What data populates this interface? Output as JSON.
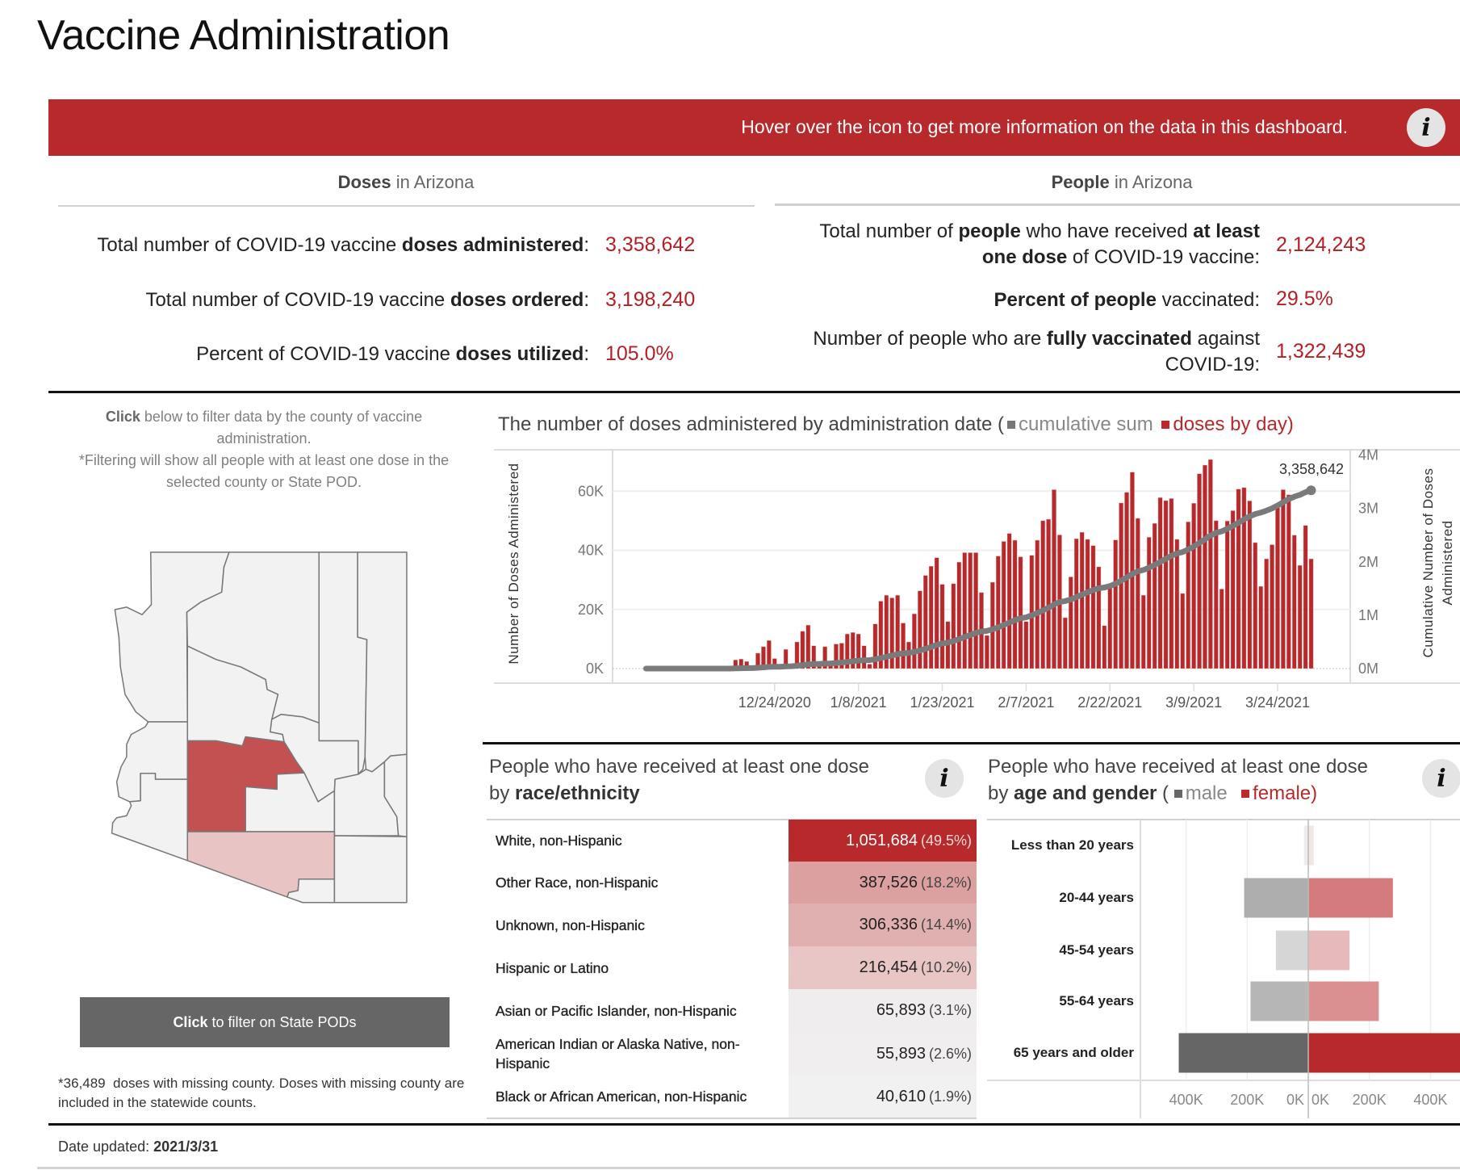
{
  "page_title": "Vaccine Administration",
  "banner": {
    "text": "Hover over the icon to get more information on the data in this dashboard.",
    "icon": "info-icon",
    "color": "#b8292b"
  },
  "doses": {
    "header_bold": "Doses",
    "header_rest": " in Arizona",
    "kpis": [
      {
        "parts": [
          "Total number of COVID-19 vaccine ",
          "doses administered",
          ":"
        ],
        "value": "3,358,642"
      },
      {
        "parts": [
          "Total number of COVID-19 vaccine ",
          "doses ordered",
          ":"
        ],
        "value": "3,198,240"
      },
      {
        "parts": [
          "Percent of COVID-19 vaccine ",
          "doses utilized",
          ":"
        ],
        "value": "105.0%"
      }
    ]
  },
  "people": {
    "header_bold": "People",
    "header_rest": " in Arizona",
    "kpis": [
      {
        "parts": [
          "Total number of ",
          "people",
          " who have received ",
          "at least one dose",
          " of COVID-19 vaccine:"
        ],
        "value": "2,124,243"
      },
      {
        "parts": [
          "Percent of people",
          " vaccinated:"
        ],
        "value": "29.5%"
      },
      {
        "parts": [
          "Number of people who are ",
          "fully vaccinated",
          " against COVID-19:"
        ],
        "value": "1,322,439"
      }
    ]
  },
  "map_panel": {
    "instructions": [
      "Click",
      " below to filter data by the county of vaccine administration."
    ],
    "note": "*Filtering will show all people with at least one dose in the selected county or State POD.",
    "fills": {
      "selected": "#c45152",
      "secondary": "#e8c4c4",
      "default": "#f2f2f2"
    },
    "button": [
      "Click",
      " to filter on State PODs"
    ],
    "footnote": "*36,489  doses with missing county. Doses with missing county are included in the statewide counts."
  },
  "date_updated": {
    "label": "Date updated: ",
    "value": "2021/3/31"
  },
  "race": {
    "title_line1": "People who have received at least one dose",
    "title_by": "by ",
    "title_bold": "race/ethnicity",
    "icon": "info-icon",
    "rows": [
      {
        "label": "White, non-Hispanic",
        "value": "1,051,684",
        "pct": "(49.5%)",
        "color": "#b8292b"
      },
      {
        "label": "Other Race, non-Hispanic",
        "value": "387,526",
        "pct": "(18.2%)",
        "color": "#dca0a1"
      },
      {
        "label": "Unknown, non-Hispanic",
        "value": "306,336",
        "pct": "(14.4%)",
        "color": "#e0b0b1"
      },
      {
        "label": "Hispanic or Latino",
        "value": "216,454",
        "pct": "(10.2%)",
        "color": "#e8c6c6"
      },
      {
        "label": "Asian or Pacific Islander, non-Hispanic",
        "value": "65,893",
        "pct": "(3.1%)",
        "color": "#efeded"
      },
      {
        "label": "American Indian or Alaska Native, non-Hispanic",
        "value": "55,893",
        "pct": "(2.6%)",
        "color": "#f0eeee"
      },
      {
        "label": "Black or African American, non-Hispanic",
        "value": "40,610",
        "pct": "(1.9%)",
        "color": "#f1f1f1"
      }
    ]
  },
  "age": {
    "title_line1": "People who have received at least one dose",
    "title_by": "by ",
    "title_bold": "age and gender",
    "title_open": " ( ",
    "legend": [
      {
        "label": "male",
        "color": "#666666"
      },
      {
        "label": "female)",
        "color": "#b8292b"
      }
    ],
    "icon": "info-icon"
  },
  "chart_data": [
    {
      "type": "bar+line",
      "title": "The number of doses administered by administration date (",
      "legend": [
        {
          "label": "cumulative sum",
          "color": "#777777"
        },
        {
          "label": "doses by day)",
          "color": "#b8292b"
        }
      ],
      "ylabel": "Number of Doses Administered",
      "y2label_line1": "Cumulative Number of Doses",
      "y2label_line2": "Administered",
      "xlim": [
        "2020-11-25",
        "2021-04-06"
      ],
      "ylim": [
        0,
        74000
      ],
      "y2lim": [
        0,
        4100000
      ],
      "xticks": [
        {
          "value": "2020-12-24",
          "label": "12/24/2020"
        },
        {
          "value": "2021-01-08",
          "label": "1/8/2021"
        },
        {
          "value": "2021-01-23",
          "label": "1/23/2021"
        },
        {
          "value": "2021-02-07",
          "label": "2/7/2021"
        },
        {
          "value": "2021-02-22",
          "label": "2/22/2021"
        },
        {
          "value": "2021-03-09",
          "label": "3/9/2021"
        },
        {
          "value": "2021-03-24",
          "label": "3/24/2021"
        }
      ],
      "yticks": [
        {
          "value": 0,
          "label": "0K"
        },
        {
          "value": 20000,
          "label": "20K"
        },
        {
          "value": 40000,
          "label": "40K"
        },
        {
          "value": 60000,
          "label": "60K"
        }
      ],
      "y2ticks": [
        {
          "value": 0,
          "label": "0M"
        },
        {
          "value": 1000000,
          "label": "1M"
        },
        {
          "value": 2000000,
          "label": "2M"
        },
        {
          "value": 3000000,
          "label": "3M"
        },
        {
          "value": 4000000,
          "label": "4M"
        }
      ],
      "grid": true,
      "cumulative_end_label": "3,358,642",
      "bar_color": "#b8292b",
      "line_color": "#7a7a7a",
      "x": [
        "2020-12-01",
        "2020-12-02",
        "2020-12-03",
        "2020-12-04",
        "2020-12-05",
        "2020-12-06",
        "2020-12-07",
        "2020-12-08",
        "2020-12-09",
        "2020-12-10",
        "2020-12-11",
        "2020-12-12",
        "2020-12-13",
        "2020-12-14",
        "2020-12-15",
        "2020-12-16",
        "2020-12-17",
        "2020-12-18",
        "2020-12-19",
        "2020-12-20",
        "2020-12-21",
        "2020-12-22",
        "2020-12-23",
        "2020-12-24",
        "2020-12-25",
        "2020-12-26",
        "2020-12-27",
        "2020-12-28",
        "2020-12-29",
        "2020-12-30",
        "2020-12-31",
        "2021-01-01",
        "2021-01-02",
        "2021-01-03",
        "2021-01-04",
        "2021-01-05",
        "2021-01-06",
        "2021-01-07",
        "2021-01-08",
        "2021-01-09",
        "2021-01-10",
        "2021-01-11",
        "2021-01-12",
        "2021-01-13",
        "2021-01-14",
        "2021-01-15",
        "2021-01-16",
        "2021-01-17",
        "2021-01-18",
        "2021-01-19",
        "2021-01-20",
        "2021-01-21",
        "2021-01-22",
        "2021-01-23",
        "2021-01-24",
        "2021-01-25",
        "2021-01-26",
        "2021-01-27",
        "2021-01-28",
        "2021-01-29",
        "2021-01-30",
        "2021-01-31",
        "2021-02-01",
        "2021-02-02",
        "2021-02-03",
        "2021-02-04",
        "2021-02-05",
        "2021-02-06",
        "2021-02-07",
        "2021-02-08",
        "2021-02-09",
        "2021-02-10",
        "2021-02-11",
        "2021-02-12",
        "2021-02-13",
        "2021-02-14",
        "2021-02-15",
        "2021-02-16",
        "2021-02-17",
        "2021-02-18",
        "2021-02-19",
        "2021-02-20",
        "2021-02-21",
        "2021-02-22",
        "2021-02-23",
        "2021-02-24",
        "2021-02-25",
        "2021-02-26",
        "2021-02-27",
        "2021-02-28",
        "2021-03-01",
        "2021-03-02",
        "2021-03-03",
        "2021-03-04",
        "2021-03-05",
        "2021-03-06",
        "2021-03-07",
        "2021-03-08",
        "2021-03-09",
        "2021-03-10",
        "2021-03-11",
        "2021-03-12",
        "2021-03-13",
        "2021-03-14",
        "2021-03-15",
        "2021-03-16",
        "2021-03-17",
        "2021-03-18",
        "2021-03-19",
        "2021-03-20",
        "2021-03-21",
        "2021-03-22",
        "2021-03-23",
        "2021-03-24",
        "2021-03-25",
        "2021-03-26",
        "2021-03-27",
        "2021-03-28",
        "2021-03-29",
        "2021-03-30"
      ],
      "series": [
        {
          "name": "doses by day",
          "type": "bar",
          "values": [
            0,
            0,
            0,
            0,
            0,
            0,
            0,
            0,
            0,
            0,
            0,
            0,
            0,
            0,
            0,
            0,
            2900,
            3200,
            2400,
            1000,
            5200,
            7400,
            9500,
            3400,
            300,
            6500,
            1500,
            9000,
            12600,
            14700,
            7700,
            1000,
            7400,
            1000,
            8300,
            8600,
            11700,
            12200,
            11700,
            7700,
            1500,
            15100,
            22800,
            24800,
            23900,
            24800,
            15400,
            9000,
            18500,
            26300,
            31500,
            34600,
            37500,
            28500,
            15900,
            28700,
            36000,
            39200,
            39200,
            39200,
            25700,
            11200,
            29200,
            38000,
            43000,
            45700,
            43400,
            37800,
            15900,
            38300,
            43400,
            50000,
            50500,
            60500,
            45200,
            17200,
            31000,
            43900,
            46100,
            43700,
            41600,
            34400,
            14500,
            27400,
            43500,
            56000,
            59600,
            66400,
            50800,
            24800,
            44400,
            49100,
            57800,
            56800,
            57500,
            43700,
            25400,
            49600,
            55900,
            65900,
            68800,
            70700,
            50000,
            26900,
            49900,
            53400,
            60700,
            61200,
            56700,
            42600,
            27800,
            37100,
            41900,
            54600,
            60500,
            58800,
            45100,
            34900,
            48400,
            37100
          ]
        },
        {
          "name": "cumulative sum",
          "type": "line",
          "axis": "right",
          "derived_from": "doses by day"
        }
      ]
    },
    {
      "type": "bar",
      "orientation": "horizontal-diverging",
      "categories": [
        "Less than 20 years",
        "20-44 years",
        "45-54 years",
        "55-64 years",
        "65 years and older"
      ],
      "series": [
        {
          "name": "male",
          "values": [
            14000,
            210000,
            106000,
            189000,
            424000
          ],
          "colors": [
            "#ececec",
            "#aeaeae",
            "#d6d6d6",
            "#b6b6b6",
            "#666666"
          ]
        },
        {
          "name": "female",
          "values": [
            18000,
            277000,
            135000,
            231000,
            560000
          ],
          "colors": [
            "#f1e6e6",
            "#d47c7d",
            "#e6b9ba",
            "#da9091",
            "#b8292b"
          ]
        }
      ],
      "xlim_each_side": [
        0,
        550000
      ],
      "male_ticks": [
        {
          "value": 400000,
          "label": "400K"
        },
        {
          "value": 200000,
          "label": "200K"
        },
        {
          "value": 0,
          "label": "0K"
        }
      ],
      "female_ticks": [
        {
          "value": 0,
          "label": "0K"
        },
        {
          "value": 200000,
          "label": "200K"
        },
        {
          "value": 400000,
          "label": "400K"
        }
      ],
      "grid": true
    }
  ]
}
